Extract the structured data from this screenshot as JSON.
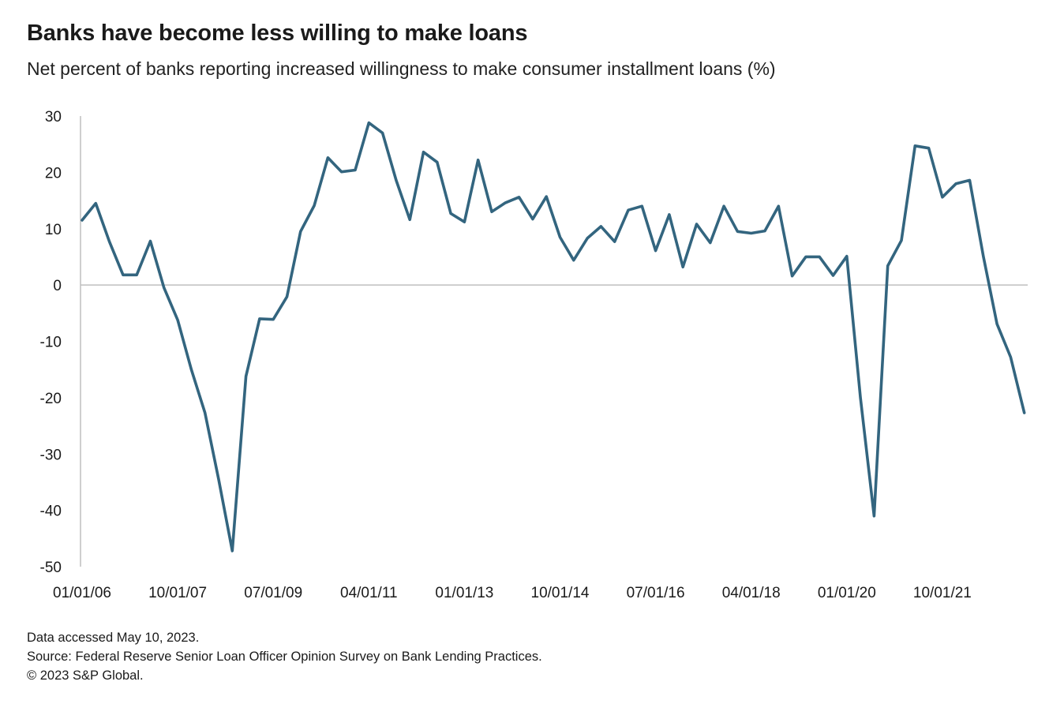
{
  "chart_data": {
    "type": "line",
    "title": "Banks have become less willing to make loans",
    "subtitle": "Net percent of banks reporting increased willingness to make consumer installment loans (%)",
    "x_tick_labels": [
      "01/01/06",
      "10/01/07",
      "07/01/09",
      "04/01/11",
      "01/01/13",
      "10/01/14",
      "07/01/16",
      "04/01/18",
      "01/01/20",
      "10/01/21"
    ],
    "y_ticks": [
      30,
      20,
      10,
      0,
      -10,
      -20,
      -30,
      -40,
      -50
    ],
    "ylim": [
      -50,
      30
    ],
    "x_start": "2006-01",
    "frequency": "quarterly",
    "line_color": "#33657f",
    "axis_color": "#bfbfbf",
    "series": [
      {
        "values": [
          11.5,
          14.5,
          7.7,
          1.8,
          1.8,
          7.8,
          -0.5,
          -6.2,
          -15,
          -22.7,
          -34.5,
          -47.2,
          -16.2,
          -6,
          -6.1,
          -2.1,
          9.5,
          14.1,
          22.6,
          20.1,
          20.4,
          28.8,
          27,
          18.6,
          11.6,
          23.6,
          21.8,
          12.7,
          11.2,
          22.2,
          13,
          14.6,
          15.6,
          11.7,
          15.7,
          8.5,
          4.4,
          8.3,
          10.4,
          7.7,
          13.3,
          14,
          6.1,
          12.5,
          3.2,
          10.8,
          7.5,
          14,
          9.5,
          9.2,
          9.6,
          14,
          1.6,
          5,
          5,
          1.7,
          5.1,
          -20,
          -41,
          3.4,
          7.9,
          24.7,
          24.3,
          15.6,
          18,
          18.6,
          5.1,
          -6.9,
          -12.8,
          -22.7
        ]
      }
    ]
  },
  "notes": {
    "accessed": "Data accessed May 10, 2023.",
    "source": "Source: Federal Reserve Senior Loan Officer Opinion Survey on Bank Lending Practices.",
    "copyright": "© 2023 S&P Global."
  }
}
